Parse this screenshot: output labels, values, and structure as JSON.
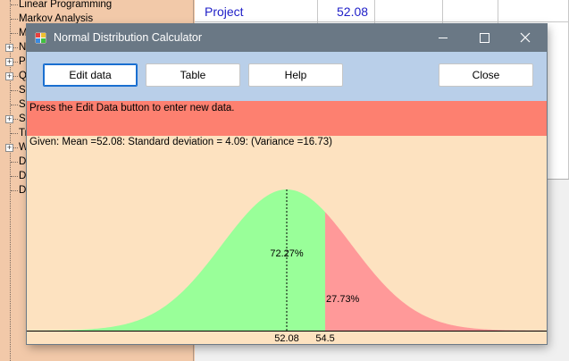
{
  "tree": {
    "items": [
      {
        "label": "Linear Programming",
        "expandable": false
      },
      {
        "label": "Markov Analysis",
        "expandable": false
      },
      {
        "label": "M",
        "expandable": false
      },
      {
        "label": "N",
        "expandable": true
      },
      {
        "label": "P",
        "expandable": true
      },
      {
        "label": "Q",
        "expandable": true
      },
      {
        "label": "Sc",
        "expandable": false
      },
      {
        "label": "Si",
        "expandable": false
      },
      {
        "label": "St",
        "expandable": true
      },
      {
        "label": "Tr",
        "expandable": false
      },
      {
        "label": "W",
        "expandable": true
      },
      {
        "label": "D",
        "expandable": false
      },
      {
        "label": "D",
        "expandable": false
      },
      {
        "label": "D",
        "expandable": false
      }
    ]
  },
  "sheet": {
    "row_label": "Project",
    "row_value": "52.08"
  },
  "window": {
    "title": "Normal Distribution Calculator",
    "minimize_icon": "minimize-icon",
    "maximize_icon": "maximize-icon",
    "close_icon": "close-icon"
  },
  "toolbar": {
    "edit_label": "Edit data",
    "table_label": "Table",
    "help_label": "Help",
    "close_label": "Close"
  },
  "message": "Press the Edit Data button to enter new data.",
  "given": "Given: Mean =52.08: Standard deviation = 4.09: (Variance =16.73)",
  "chart_data": {
    "type": "area",
    "distribution": "normal",
    "mean": 52.08,
    "sd": 4.09,
    "cutoff": 54.5,
    "x_range_sd": 4,
    "regions": [
      {
        "label": "72.27%",
        "value": 72.27,
        "side": "left",
        "color": "#99ff99"
      },
      {
        "label": "27.73%",
        "value": 27.73,
        "side": "right",
        "color": "#ff9999"
      }
    ],
    "x_tick_labels": [
      "52.08",
      "54.5"
    ],
    "x_ticks": [
      52.08,
      54.5
    ],
    "mean_line": "dotted"
  }
}
